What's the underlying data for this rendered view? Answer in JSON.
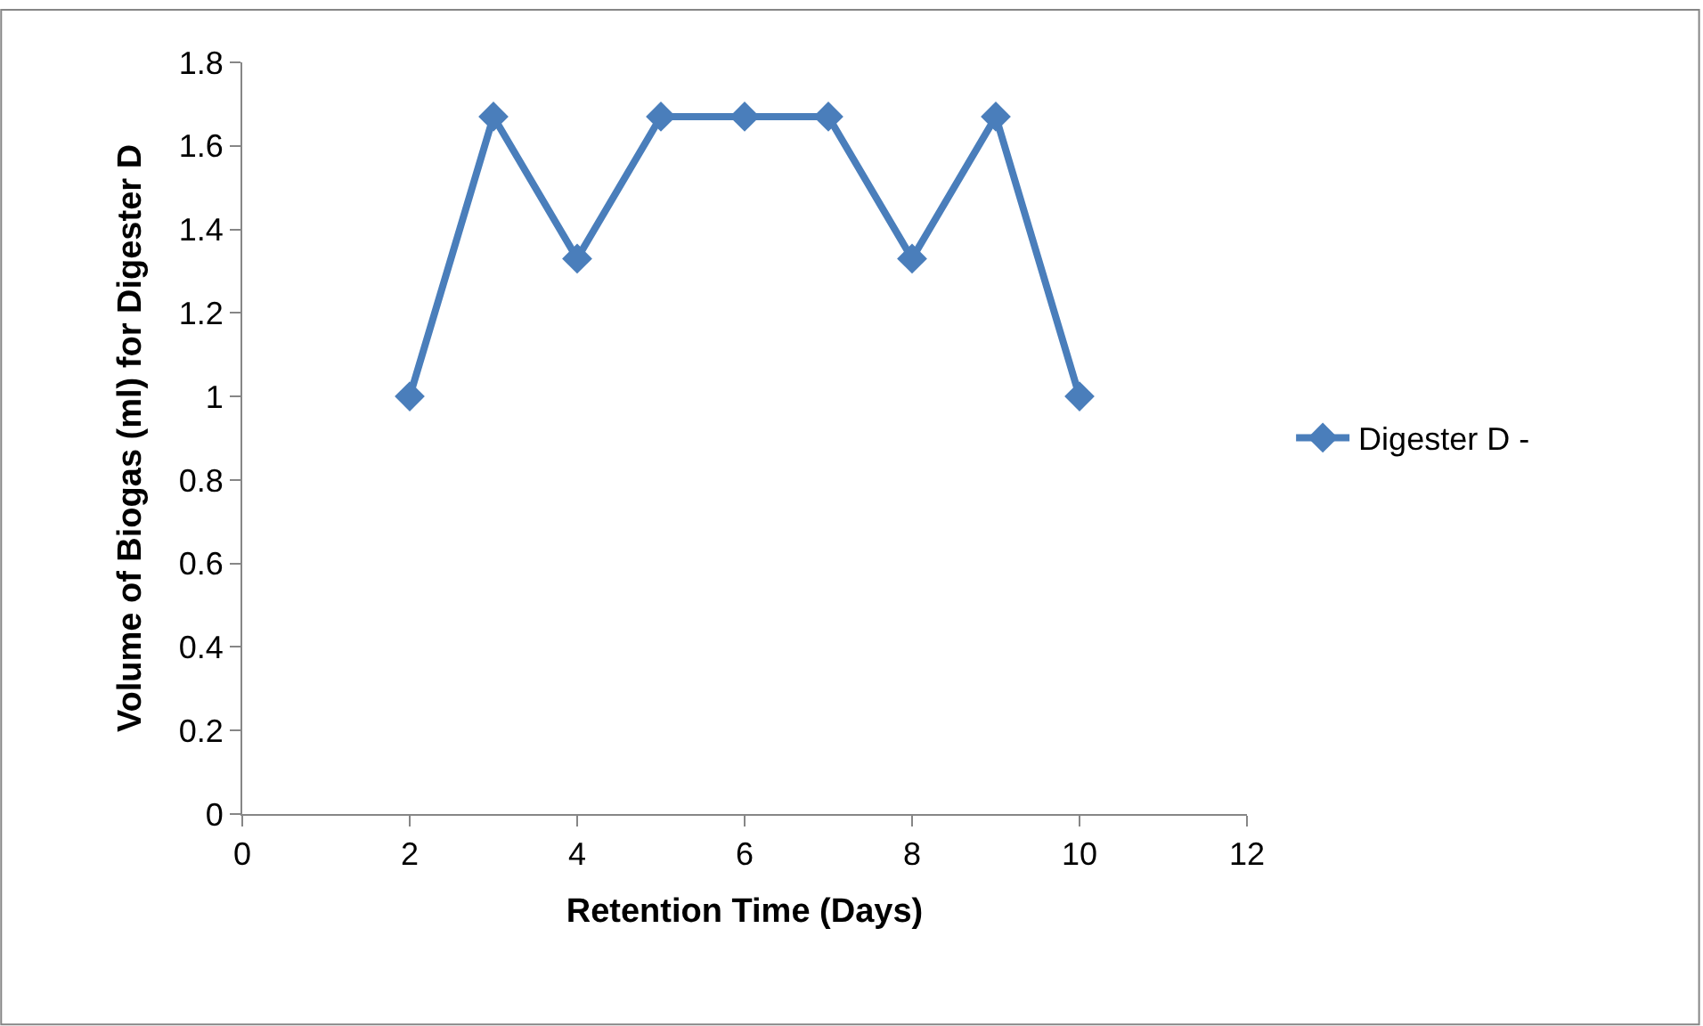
{
  "chart_data": {
    "type": "line",
    "xlabel": "Retention Time (Days)",
    "ylabel": "Volume of Biogas (ml) for Digester D",
    "x": [
      2,
      3,
      4,
      5,
      6,
      7,
      8,
      9,
      10
    ],
    "series": [
      {
        "name": "Digester D -",
        "color": "#4a7ebb",
        "values": [
          1,
          1.67,
          1.33,
          1.67,
          1.67,
          1.67,
          1.33,
          1.67,
          1
        ]
      }
    ],
    "xlim": [
      0,
      12
    ],
    "xticks": [
      0,
      2,
      4,
      6,
      8,
      10,
      12
    ],
    "ylim": [
      0,
      1.8
    ],
    "yticks": [
      0,
      0.2,
      0.4,
      0.6,
      0.8,
      1,
      1.2,
      1.4,
      1.6,
      1.8
    ],
    "legend": "right",
    "marker": "diamond",
    "line_style": "solid"
  }
}
